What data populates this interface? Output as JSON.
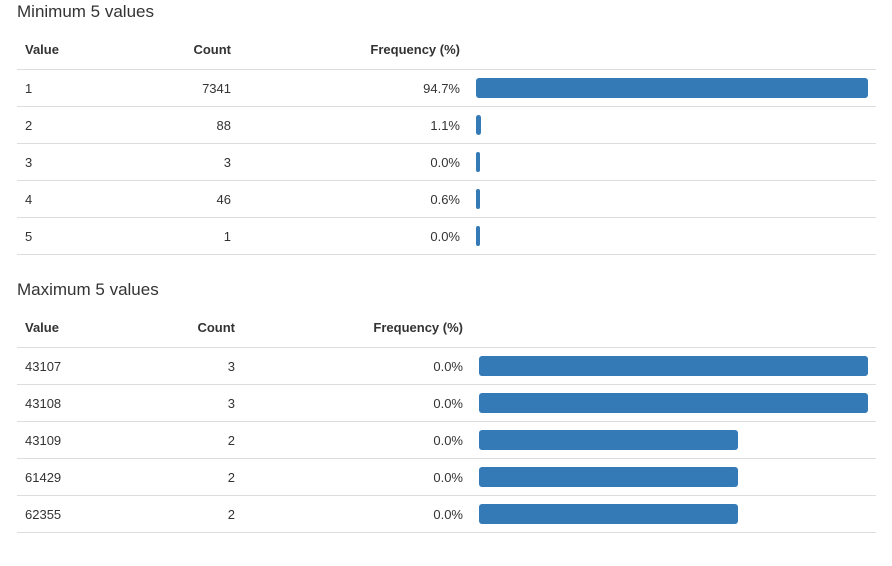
{
  "minimum": {
    "title": "Minimum 5 values",
    "headers": {
      "value": "Value",
      "count": "Count",
      "frequency": "Frequency (%)"
    },
    "rows": [
      {
        "value": "1",
        "count": "7341",
        "frequency": "94.7%",
        "bar_fraction": 1.0
      },
      {
        "value": "2",
        "count": "88",
        "frequency": "1.1%",
        "bar_fraction": 0.012
      },
      {
        "value": "3",
        "count": "3",
        "frequency": "0.0%",
        "bar_fraction": 0.0004
      },
      {
        "value": "4",
        "count": "46",
        "frequency": "0.6%",
        "bar_fraction": 0.0063
      },
      {
        "value": "5",
        "count": "1",
        "frequency": "0.0%",
        "bar_fraction": 0.0001
      }
    ]
  },
  "maximum": {
    "title": "Maximum 5 values",
    "headers": {
      "value": "Value",
      "count": "Count",
      "frequency": "Frequency (%)"
    },
    "rows": [
      {
        "value": "43107",
        "count": "3",
        "frequency": "0.0%",
        "bar_fraction": 1.0
      },
      {
        "value": "43108",
        "count": "3",
        "frequency": "0.0%",
        "bar_fraction": 1.0
      },
      {
        "value": "43109",
        "count": "2",
        "frequency": "0.0%",
        "bar_fraction": 0.667
      },
      {
        "value": "61429",
        "count": "2",
        "frequency": "0.0%",
        "bar_fraction": 0.667
      },
      {
        "value": "62355",
        "count": "2",
        "frequency": "0.0%",
        "bar_fraction": 0.667
      }
    ]
  },
  "colors": {
    "bar": "#337ab7",
    "border": "#dddddd",
    "text": "#333333"
  }
}
